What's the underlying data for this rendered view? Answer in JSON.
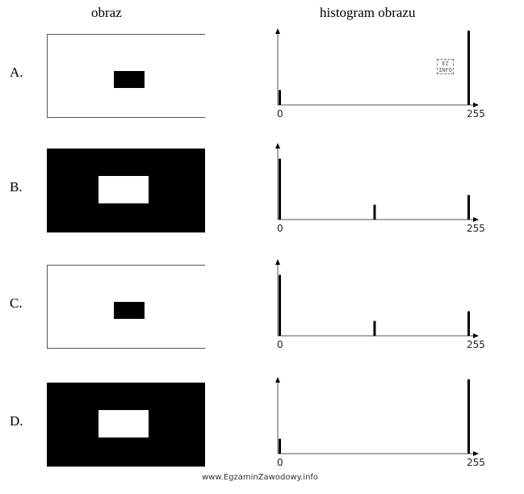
{
  "headers": {
    "image": "obraz",
    "histogram": "histogram obrazu"
  },
  "axis": {
    "min_label": "0",
    "max_label": "255"
  },
  "colors": {
    "ink": "#000000",
    "axis": "#555555",
    "paper": "#ffffff"
  },
  "rows": [
    {
      "label": "A.",
      "image": {
        "background": "white",
        "rect": "black"
      },
      "histogram": {
        "bins": [
          {
            "x": 0,
            "height": 0.2
          },
          {
            "x": 255,
            "height": 1.0
          }
        ]
      }
    },
    {
      "label": "B.",
      "image": {
        "background": "black",
        "rect": "white"
      },
      "histogram": {
        "bins": [
          {
            "x": 0,
            "height": 0.82
          },
          {
            "x": 128,
            "height": 0.2
          },
          {
            "x": 255,
            "height": 0.33
          }
        ]
      }
    },
    {
      "label": "C.",
      "image": {
        "background": "white",
        "rect": "black"
      },
      "histogram": {
        "bins": [
          {
            "x": 0,
            "height": 0.82
          },
          {
            "x": 128,
            "height": 0.2
          },
          {
            "x": 255,
            "height": 0.33
          }
        ]
      }
    },
    {
      "label": "D.",
      "image": {
        "background": "black",
        "rect": "white"
      },
      "histogram": {
        "bins": [
          {
            "x": 0,
            "height": 0.2
          },
          {
            "x": 255,
            "height": 1.0
          }
        ]
      }
    }
  ],
  "watermark": {
    "logo_text": "EZ INFO"
  },
  "footer": "www.EgzaminZawodowy.info"
}
